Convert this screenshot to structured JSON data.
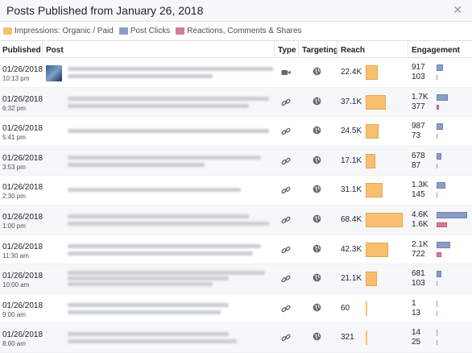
{
  "header": {
    "title": "Posts Published from January 26, 2018",
    "close_icon": "close-icon"
  },
  "legend": [
    {
      "label": "Impressions: Organic / Paid",
      "color": "#f7bf70"
    },
    {
      "label": "Post Clicks",
      "color": "#8c9dc5"
    },
    {
      "label": "Reactions, Comments & Shares",
      "color": "#d87a97"
    }
  ],
  "columns": {
    "published": "Published",
    "post": "Post",
    "type": "Type",
    "targeting": "Targeting",
    "reach": "Reach",
    "engagement": "Engagement"
  },
  "reach_max": 68.4,
  "engagement_max": 4.6,
  "rows": [
    {
      "date": "01/26/2018",
      "time": "10:13 pm",
      "type": "video",
      "reach": "22.4K",
      "reach_k": 22.4,
      "clicks": "917",
      "reactions": "103",
      "clicks_k": 0.917,
      "reactions_k": 0.103,
      "thumb": true
    },
    {
      "date": "01/26/2018",
      "time": "6:32 pm",
      "type": "link",
      "reach": "37.1K",
      "reach_k": 37.1,
      "clicks": "1.7K",
      "reactions": "377",
      "clicks_k": 1.7,
      "reactions_k": 0.377
    },
    {
      "date": "01/26/2018",
      "time": "5:41 pm",
      "type": "link",
      "reach": "24.5K",
      "reach_k": 24.5,
      "clicks": "987",
      "reactions": "73",
      "clicks_k": 0.987,
      "reactions_k": 0.073
    },
    {
      "date": "01/26/2018",
      "time": "3:53 pm",
      "type": "link",
      "reach": "17.1K",
      "reach_k": 17.1,
      "clicks": "678",
      "reactions": "87",
      "clicks_k": 0.678,
      "reactions_k": 0.087
    },
    {
      "date": "01/26/2018",
      "time": "2:30 pm",
      "type": "link",
      "reach": "31.1K",
      "reach_k": 31.1,
      "clicks": "1.3K",
      "reactions": "145",
      "clicks_k": 1.3,
      "reactions_k": 0.145
    },
    {
      "date": "01/26/2018",
      "time": "1:00 pm",
      "type": "link",
      "reach": "68.4K",
      "reach_k": 68.4,
      "clicks": "4.6K",
      "reactions": "1.6K",
      "clicks_k": 4.6,
      "reactions_k": 1.6
    },
    {
      "date": "01/26/2018",
      "time": "11:30 am",
      "type": "link",
      "reach": "42.3K",
      "reach_k": 42.3,
      "clicks": "2.1K",
      "reactions": "722",
      "clicks_k": 2.1,
      "reactions_k": 0.722
    },
    {
      "date": "01/26/2018",
      "time": "10:00 am",
      "type": "link",
      "reach": "21.1K",
      "reach_k": 21.1,
      "clicks": "681",
      "reactions": "103",
      "clicks_k": 0.681,
      "reactions_k": 0.103
    },
    {
      "date": "01/26/2018",
      "time": "9:00 am",
      "type": "link",
      "reach": "60",
      "reach_k": 0.06,
      "clicks": "1",
      "reactions": "13",
      "clicks_k": 0.001,
      "reactions_k": 0.013
    },
    {
      "date": "01/26/2018",
      "time": "8:00 am",
      "type": "link",
      "reach": "321",
      "reach_k": 0.321,
      "clicks": "14",
      "reactions": "25",
      "clicks_k": 0.014,
      "reactions_k": 0.025
    }
  ]
}
